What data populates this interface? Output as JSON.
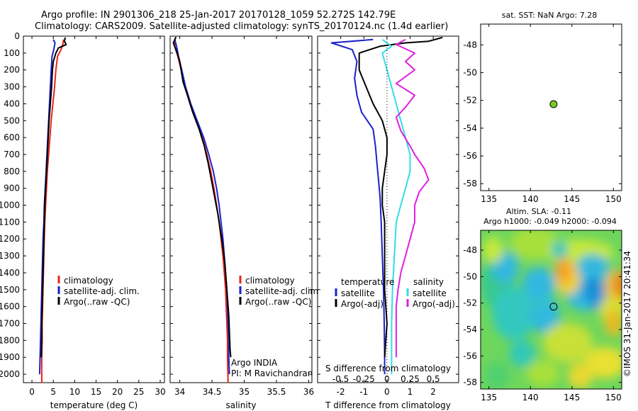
{
  "header": {
    "line1": "Argo profile: IN 2901306_218 25-Jan-2017 20170128_1059 52.272S 142.79E",
    "line2": "Climatology: CARS2009. Satellite-adjusted climatology: synTS_20170124.nc (1.4d earlier)"
  },
  "colors": {
    "climatology": "#e8231a",
    "satellite": "#1a22c8",
    "argo": "#000000",
    "satellite_diff": "#33dde6",
    "argo_sal_diff": "#e020e0",
    "marker": "#77cc22"
  },
  "chart_data": [
    {
      "type": "line",
      "id": "temperature",
      "xlabel": "temperature (deg C)",
      "xlim": [
        -2,
        31
      ],
      "xticks": [
        0,
        5,
        10,
        15,
        20,
        25,
        30
      ],
      "ylim": [
        2050,
        0
      ],
      "yticks": [
        0,
        100,
        200,
        300,
        400,
        500,
        600,
        700,
        800,
        900,
        1000,
        1100,
        1200,
        1300,
        1400,
        1500,
        1600,
        1700,
        1800,
        1900,
        2000
      ],
      "legend": [
        "climatology",
        "satellite-adj. clim.",
        "Argo(..raw -QC)"
      ],
      "series": [
        {
          "name": "climatology",
          "key": "climatology",
          "points": [
            [
              7.4,
              20
            ],
            [
              7.2,
              50
            ],
            [
              6.8,
              80
            ],
            [
              6.0,
              120
            ],
            [
              5.6,
              200
            ],
            [
              5.3,
              300
            ],
            [
              4.9,
              400
            ],
            [
              4.5,
              500
            ],
            [
              4.2,
              600
            ],
            [
              3.9,
              700
            ],
            [
              3.6,
              800
            ],
            [
              3.4,
              900
            ],
            [
              3.2,
              1000
            ],
            [
              3.0,
              1100
            ],
            [
              2.9,
              1200
            ],
            [
              2.8,
              1300
            ],
            [
              2.7,
              1400
            ],
            [
              2.6,
              1500
            ],
            [
              2.5,
              1600
            ],
            [
              2.4,
              1700
            ],
            [
              2.4,
              1800
            ],
            [
              2.3,
              1900
            ],
            [
              2.3,
              2050
            ]
          ]
        },
        {
          "name": "satellite-adj. clim.",
          "key": "satellite",
          "points": [
            [
              5.0,
              20
            ],
            [
              5.4,
              40
            ],
            [
              5.1,
              80
            ],
            [
              4.7,
              120
            ],
            [
              4.5,
              200
            ],
            [
              4.3,
              300
            ],
            [
              4.1,
              400
            ],
            [
              3.9,
              500
            ],
            [
              3.7,
              600
            ],
            [
              3.5,
              700
            ],
            [
              3.3,
              800
            ],
            [
              3.1,
              900
            ],
            [
              2.9,
              1000
            ],
            [
              2.8,
              1100
            ],
            [
              2.6,
              1200
            ],
            [
              2.5,
              1300
            ],
            [
              2.4,
              1400
            ],
            [
              2.3,
              1500
            ],
            [
              2.2,
              1600
            ],
            [
              2.1,
              1700
            ],
            [
              2.0,
              1800
            ],
            [
              1.9,
              1900
            ],
            [
              1.8,
              2000
            ]
          ]
        },
        {
          "name": "Argo(..raw -QC)",
          "key": "argo",
          "points": [
            [
              7.8,
              8
            ],
            [
              7.6,
              30
            ],
            [
              8.0,
              50
            ],
            [
              6.2,
              70
            ],
            [
              5.6,
              100
            ],
            [
              5.0,
              150
            ],
            [
              4.8,
              200
            ],
            [
              4.6,
              300
            ],
            [
              4.3,
              400
            ],
            [
              4.0,
              500
            ],
            [
              3.8,
              600
            ],
            [
              3.6,
              700
            ],
            [
              3.4,
              800
            ],
            [
              3.2,
              900
            ],
            [
              3.0,
              1000
            ],
            [
              2.9,
              1100
            ],
            [
              2.8,
              1200
            ],
            [
              2.7,
              1300
            ],
            [
              2.6,
              1400
            ],
            [
              2.5,
              1500
            ],
            [
              2.4,
              1600
            ],
            [
              2.3,
              1700
            ],
            [
              2.3,
              1800
            ],
            [
              2.2,
              1900
            ]
          ]
        }
      ]
    },
    {
      "type": "line",
      "id": "salinity",
      "xlabel": "salinity",
      "xlim": [
        33.85,
        36.05
      ],
      "xticks": [
        34,
        34.5,
        35,
        35.5,
        36
      ],
      "ylim": [
        2050,
        0
      ],
      "legend": [
        "climatology",
        "satellite-adj. clim.",
        "Argo(..raw -QC)"
      ],
      "annotations": [
        "Argo INDIA",
        "PI: M Ravichandran"
      ],
      "series": [
        {
          "name": "climatology",
          "key": "climatology",
          "points": [
            [
              33.93,
              20
            ],
            [
              33.92,
              60
            ],
            [
              33.97,
              120
            ],
            [
              34.02,
              200
            ],
            [
              34.08,
              300
            ],
            [
              34.16,
              400
            ],
            [
              34.26,
              500
            ],
            [
              34.35,
              600
            ],
            [
              34.42,
              700
            ],
            [
              34.48,
              800
            ],
            [
              34.53,
              900
            ],
            [
              34.57,
              1000
            ],
            [
              34.61,
              1100
            ],
            [
              34.64,
              1200
            ],
            [
              34.67,
              1300
            ],
            [
              34.69,
              1400
            ],
            [
              34.71,
              1500
            ],
            [
              34.72,
              1600
            ],
            [
              34.73,
              1700
            ],
            [
              34.74,
              1800
            ],
            [
              34.74,
              1900
            ],
            [
              34.75,
              2050
            ]
          ]
        },
        {
          "name": "satellite-adj. clim.",
          "key": "satellite",
          "points": [
            [
              33.92,
              20
            ],
            [
              33.95,
              60
            ],
            [
              33.98,
              120
            ],
            [
              34.03,
              200
            ],
            [
              34.09,
              300
            ],
            [
              34.17,
              400
            ],
            [
              34.27,
              500
            ],
            [
              34.37,
              600
            ],
            [
              34.45,
              700
            ],
            [
              34.52,
              800
            ],
            [
              34.57,
              900
            ],
            [
              34.61,
              1000
            ],
            [
              34.64,
              1100
            ],
            [
              34.67,
              1200
            ],
            [
              34.69,
              1300
            ],
            [
              34.71,
              1400
            ],
            [
              34.73,
              1500
            ],
            [
              34.74,
              1600
            ],
            [
              34.75,
              1700
            ],
            [
              34.76,
              1800
            ],
            [
              34.76,
              1900
            ],
            [
              34.77,
              2000
            ]
          ]
        },
        {
          "name": "Argo(..raw -QC)",
          "key": "argo",
          "points": [
            [
              33.94,
              5
            ],
            [
              33.9,
              40
            ],
            [
              33.96,
              100
            ],
            [
              34.0,
              150
            ],
            [
              34.02,
              200
            ],
            [
              34.05,
              270
            ],
            [
              34.12,
              350
            ],
            [
              34.2,
              450
            ],
            [
              34.3,
              550
            ],
            [
              34.38,
              650
            ],
            [
              34.44,
              750
            ],
            [
              34.49,
              850
            ],
            [
              34.54,
              950
            ],
            [
              34.59,
              1050
            ],
            [
              34.63,
              1150
            ],
            [
              34.67,
              1250
            ],
            [
              34.7,
              1350
            ],
            [
              34.72,
              1450
            ],
            [
              34.74,
              1550
            ],
            [
              34.76,
              1650
            ],
            [
              34.77,
              1750
            ],
            [
              34.78,
              1850
            ],
            [
              34.79,
              1900
            ]
          ]
        }
      ]
    },
    {
      "type": "line",
      "id": "differences",
      "xlabel": "T difference from climatology",
      "xlabel2": "S difference from climatology",
      "xlim": [
        -3.0,
        3.1
      ],
      "xticks_t": [
        -2,
        -1,
        0,
        1,
        2
      ],
      "xticks_s_values": [
        -0.5,
        -0.25,
        0,
        0.25,
        0.5
      ],
      "xticks_s_labels": [
        "-0.5",
        "-0.25",
        "0",
        "0.25",
        "0.5"
      ],
      "ylim": [
        2050,
        0
      ],
      "legend_headers": [
        "temperature",
        "salinity"
      ],
      "legend_t": [
        "satellite",
        "Argo(-adj)"
      ],
      "legend_s": [
        "satellite",
        "Argo(-adj)"
      ],
      "series": [
        {
          "name": "satellite",
          "group": "temperature",
          "key": "satellite",
          "points": [
            [
              -0.6,
              20
            ],
            [
              -2.4,
              40
            ],
            [
              -1.5,
              80
            ],
            [
              -1.3,
              150
            ],
            [
              -1.4,
              250
            ],
            [
              -1.3,
              350
            ],
            [
              -1.1,
              450
            ],
            [
              -0.6,
              550
            ],
            [
              -0.5,
              650
            ],
            [
              -0.4,
              800
            ],
            [
              -0.3,
              950
            ],
            [
              -0.25,
              1100
            ],
            [
              -0.2,
              1300
            ],
            [
              -0.15,
              1500
            ],
            [
              -0.12,
              1700
            ],
            [
              -0.1,
              1900
            ],
            [
              -0.1,
              2000
            ]
          ]
        },
        {
          "name": "Argo(-adj)",
          "group": "temperature",
          "key": "argo",
          "points": [
            [
              2.4,
              8
            ],
            [
              1.8,
              30
            ],
            [
              0.8,
              40
            ],
            [
              -0.3,
              60
            ],
            [
              -1.2,
              100
            ],
            [
              -1.2,
              200
            ],
            [
              -0.9,
              300
            ],
            [
              -0.6,
              400
            ],
            [
              -0.2,
              500
            ],
            [
              0.0,
              600
            ],
            [
              0.0,
              700
            ],
            [
              -0.1,
              800
            ],
            [
              -0.2,
              900
            ],
            [
              -0.2,
              1000
            ],
            [
              -0.1,
              1100
            ],
            [
              -0.1,
              1300
            ],
            [
              -0.1,
              1500
            ],
            [
              0.0,
              1700
            ],
            [
              -0.1,
              1900
            ]
          ]
        },
        {
          "name": "satellite",
          "group": "salinity",
          "key": "satellite_diff",
          "points": [
            [
              -0.05,
              20
            ],
            [
              0.05,
              60
            ],
            [
              -0.05,
              100
            ],
            [
              0.0,
              200
            ],
            [
              0.05,
              300
            ],
            [
              0.1,
              400
            ],
            [
              0.15,
              500
            ],
            [
              0.2,
              600
            ],
            [
              0.25,
              700
            ],
            [
              0.25,
              800
            ],
            [
              0.2,
              900
            ],
            [
              0.15,
              1000
            ],
            [
              0.1,
              1100
            ],
            [
              0.08,
              1300
            ],
            [
              0.06,
              1500
            ],
            [
              0.05,
              1700
            ],
            [
              0.05,
              1900
            ],
            [
              0.05,
              2000
            ]
          ]
        },
        {
          "name": "Argo(-adj)",
          "group": "salinity",
          "key": "argo_sal_diff",
          "points": [
            [
              0.2,
              20
            ],
            [
              0.1,
              50
            ],
            [
              0.3,
              100
            ],
            [
              0.2,
              150
            ],
            [
              0.3,
              200
            ],
            [
              0.1,
              280
            ],
            [
              0.3,
              350
            ],
            [
              0.2,
              420
            ],
            [
              0.1,
              480
            ],
            [
              0.15,
              560
            ],
            [
              0.25,
              650
            ],
            [
              0.3,
              700
            ],
            [
              0.4,
              780
            ],
            [
              0.45,
              850
            ],
            [
              0.35,
              920
            ],
            [
              0.3,
              1000
            ],
            [
              0.3,
              1100
            ],
            [
              0.25,
              1200
            ],
            [
              0.2,
              1300
            ],
            [
              0.15,
              1400
            ],
            [
              0.12,
              1500
            ],
            [
              0.1,
              1600
            ],
            [
              0.1,
              1700
            ],
            [
              0.1,
              1800
            ],
            [
              0.1,
              1900
            ]
          ]
        }
      ]
    },
    {
      "type": "scatter",
      "id": "sst-map",
      "title": "sat. SST: NaN Argo: 7.28",
      "xlim": [
        134,
        151
      ],
      "ylim": [
        -58.5,
        -46.5
      ],
      "xticks": [
        135,
        140,
        145,
        150
      ],
      "yticks": [
        -48,
        -50,
        -52,
        -54,
        -56,
        -58
      ],
      "points": [
        [
          142.79,
          -52.272
        ]
      ]
    },
    {
      "type": "heatmap",
      "id": "sla-map",
      "title": "Altim. SLA: -0.11",
      "subtitle": "Argo h1000: -0.049 h2000: -0.094",
      "xlim": [
        134,
        151
      ],
      "ylim": [
        -58.5,
        -46.5
      ],
      "xticks": [
        135,
        140,
        145,
        150
      ],
      "yticks": [
        -48,
        -50,
        -52,
        -54,
        -56,
        -58
      ],
      "marker": [
        142.79,
        -52.272
      ],
      "side_label": "©IMOS 31-Jan-2017 20:41:34"
    }
  ]
}
